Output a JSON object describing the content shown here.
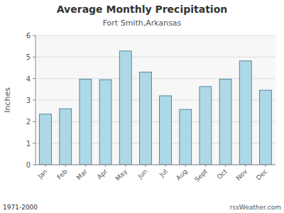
{
  "chart_data": {
    "type": "bar",
    "title": "Average Monthly Precipitation",
    "subtitle": "Fort Smith,Arkansas",
    "y_label": "Inches",
    "annotations": [
      "1971-2000",
      "rssWeather.com"
    ],
    "categories": [
      "Jan",
      "Feb",
      "Mar",
      "Apr",
      "May",
      "Jun",
      "Jul",
      "Aug",
      "Sept",
      "Oct",
      "Nov",
      "Dec"
    ],
    "values": [
      2.35,
      2.6,
      3.97,
      3.95,
      5.28,
      4.3,
      3.2,
      2.57,
      3.63,
      3.97,
      4.82,
      3.46
    ],
    "color": "#add8e6",
    "ylim": [
      0.0,
      6.0
    ],
    "yticks": [
      0,
      1,
      2,
      3,
      4,
      5,
      6
    ],
    "grid": true
  }
}
